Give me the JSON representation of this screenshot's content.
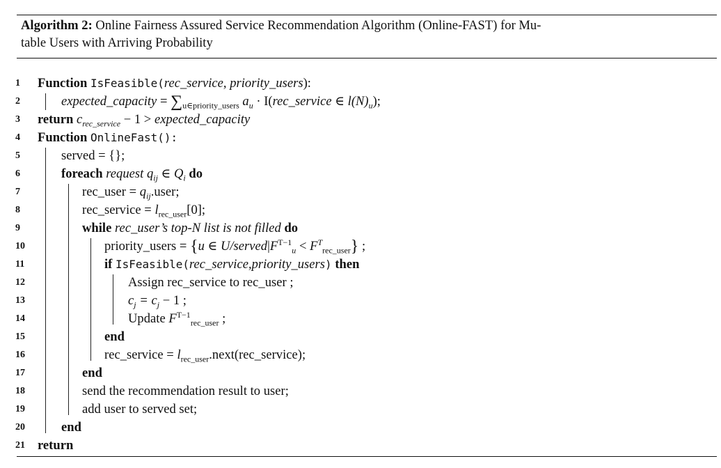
{
  "caption": {
    "label": "Algorithm 2:",
    "title_line1": "Online Fairness Assured Service Recommendation Algorithm (Online-FAST) for Mu-",
    "title_line2": "table Users with Arriving Probability"
  },
  "line_numbers": [
    "1",
    "2",
    "3",
    "4",
    "5",
    "6",
    "7",
    "8",
    "9",
    "10",
    "11",
    "12",
    "13",
    "14",
    "15",
    "16",
    "17",
    "18",
    "19",
    "20",
    "21"
  ],
  "keywords": {
    "function": "Function",
    "return": "return",
    "foreach": "foreach",
    "do": "do",
    "while": "while",
    "if": "if",
    "then": "then",
    "end": "end"
  },
  "lines": {
    "l1_name": "IsFeasible(",
    "l1_args": "rec_service, priority_users",
    "l1_close": "):",
    "l2_lhs": "expected_capacity",
    "l2_rhs_sub": "u∈priority_users",
    "l2_rhs_a": "a",
    "l2_rhs_asub": "u",
    "l2_rhs_mid": " · I(",
    "l2_rhs_arg": "rec_service",
    "l2_rhs_in": " ∈ l(N)",
    "l2_rhs_tail": ");",
    "l3_c": "c",
    "l3_csub": "rec_service",
    "l3_mid": " − 1 > ",
    "l3_rhs": "expected_capacity",
    "l4_name": "OnlineFast():",
    "l5": "served = {};",
    "l6_req": "request",
    "l6_q": "q",
    "l6_qsub": "ij",
    "l6_in": " ∈ Q",
    "l6_isub": "i",
    "l7_lhs": "rec_user = ",
    "l7_q": "q",
    "l7_qsub": "ij",
    "l7_tail": ".user;",
    "l8_lhs": "rec_service = ",
    "l8_l": "l",
    "l8_lsub": "rec_user",
    "l8_tail": "[0];",
    "l9_cond": "rec_user’s top-N list is not filled",
    "l10_lhs": "priority_users = ",
    "l10_set_a": "u ∈ U/served",
    "l10_F": "F",
    "l10_Fsub": "u",
    "l10_Fsup": "T−1",
    "l10_lt": " < ",
    "l10_F2sub": "rec_user",
    "l10_F2sup": "T",
    "l10_tail": " ;",
    "l11_name": "IsFeasible(",
    "l11_args": "rec_service,priority_users",
    "l11_close": ")",
    "l12": "Assign rec_service to rec_user ;",
    "l13_c": "c",
    "l13_csub": "j",
    "l13_mid": " = c",
    "l13_tail": " − 1 ;",
    "l14_pre": "Update ",
    "l14_sup": "T−1",
    "l14_sub": "rec_user",
    "l14_tail": " ;",
    "l16_lhs": "rec_service = ",
    "l16_sub": "rec_user",
    "l16_tail": ".next(rec_service);",
    "l18": "send the recommendation result to user;",
    "l19": "add user to served set;"
  }
}
